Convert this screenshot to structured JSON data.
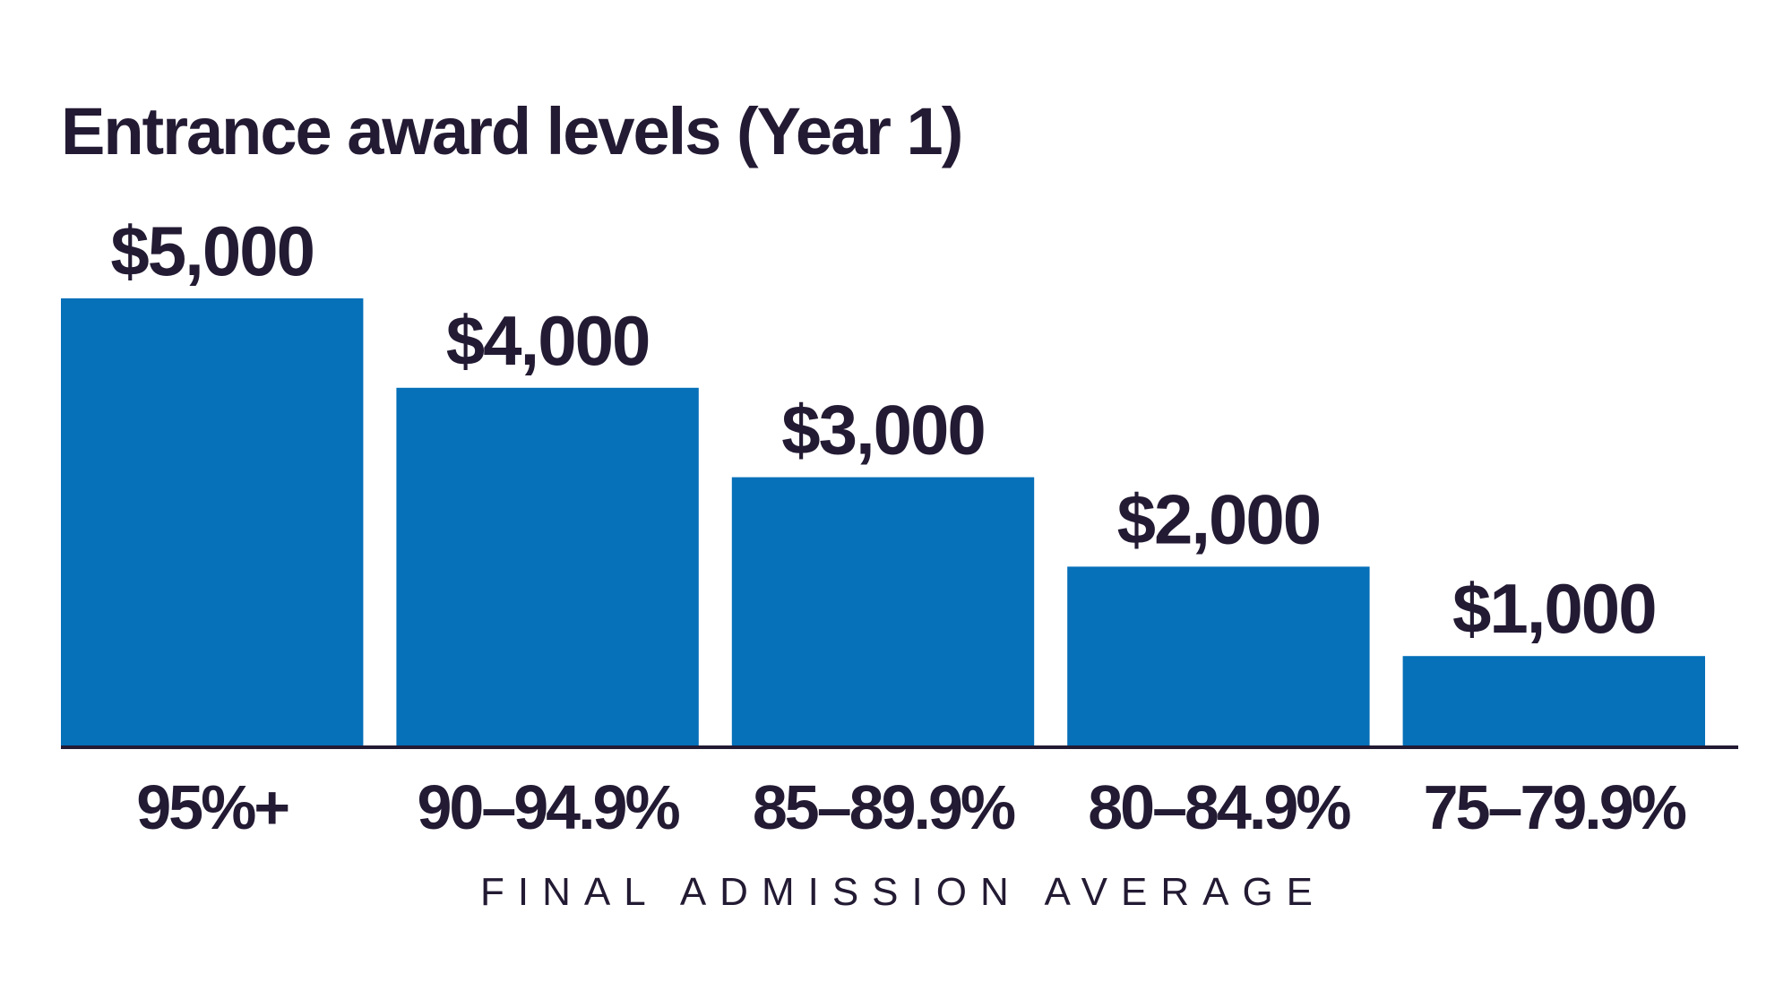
{
  "chart_data": {
    "type": "bar",
    "title": "Entrance award levels (Year 1)",
    "xlabel": "FINAL ADMISSION AVERAGE",
    "ylabel": "",
    "categories": [
      "95%+",
      "90–94.9%",
      "85–89.9%",
      "80–84.9%",
      "75–79.9%"
    ],
    "values": [
      5000,
      4000,
      3000,
      2000,
      1000
    ],
    "data_labels": [
      "$5,000",
      "$4,000",
      "$3,000",
      "$2,000",
      "$1,000"
    ],
    "ylim": [
      0,
      5000
    ],
    "grid": false,
    "legend": "none"
  },
  "colors": {
    "bar": "#0670b9",
    "text": "#231a33",
    "axis": "#231a33",
    "background": "#ffffff"
  }
}
